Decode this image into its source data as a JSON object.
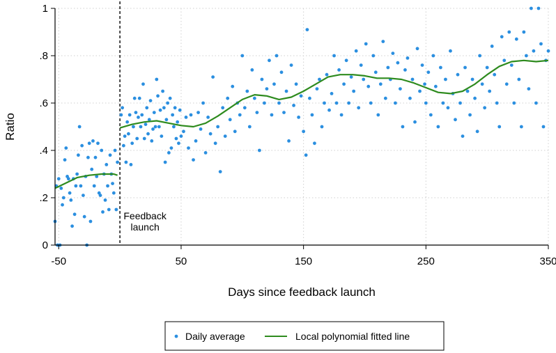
{
  "chart_data": {
    "type": "scatter",
    "title": "",
    "xlabel": "Days since feedback launch",
    "ylabel": "Ratio",
    "xlim": [
      -53,
      350
    ],
    "ylim": [
      0,
      1
    ],
    "x_ticks": [
      -50,
      50,
      150,
      250,
      350
    ],
    "x_tick_labels": [
      "-50",
      "50",
      "150",
      "250",
      "350"
    ],
    "y_ticks": [
      0,
      0.2,
      0.4,
      0.6,
      0.8,
      1
    ],
    "y_tick_labels": [
      "0",
      ".2",
      ".4",
      ".6",
      ".8",
      "1"
    ],
    "grid": true,
    "legend_position": "bottom",
    "colors": {
      "points": "#2b8fe0",
      "line": "#2e8b1e",
      "vline": "#000000",
      "grid": "#cfcfcf"
    },
    "annotation": {
      "line1": "Feedback",
      "line2": "launch",
      "x": 0
    },
    "series": [
      {
        "name": "Daily average",
        "kind": "scatter",
        "points": [
          [
            -53,
            0.1
          ],
          [
            -52,
            0.25
          ],
          [
            -51,
            0
          ],
          [
            -50,
            0.28
          ],
          [
            -49,
            0
          ],
          [
            -48,
            0.24
          ],
          [
            -47,
            0.17
          ],
          [
            -46,
            0.2
          ],
          [
            -45,
            0.36
          ],
          [
            -44,
            0.41
          ],
          [
            -43,
            0.29
          ],
          [
            -42,
            0.28
          ],
          [
            -41,
            0.22
          ],
          [
            -40,
            0.19
          ],
          [
            -39,
            0.08
          ],
          [
            -38,
            0.28
          ],
          [
            -37,
            0.13
          ],
          [
            -36,
            0.25
          ],
          [
            -35,
            0.3
          ],
          [
            -34,
            0.38
          ],
          [
            -33,
            0.5
          ],
          [
            -32,
            0.25
          ],
          [
            -31,
            0.42
          ],
          [
            -30,
            0.21
          ],
          [
            -29,
            0.12
          ],
          [
            -28,
            0.29
          ],
          [
            -27,
            0
          ],
          [
            -26,
            0.37
          ],
          [
            -25,
            0.43
          ],
          [
            -24,
            0.1
          ],
          [
            -23,
            0.32
          ],
          [
            -22,
            0.44
          ],
          [
            -21,
            0.25
          ],
          [
            -20,
            0.37
          ],
          [
            -19,
            0.29
          ],
          [
            -18,
            0.43
          ],
          [
            -17,
            0.22
          ],
          [
            -16,
            0.21
          ],
          [
            -15,
            0.4
          ],
          [
            -14,
            0.14
          ],
          [
            -13,
            0.3
          ],
          [
            -12,
            0.19
          ],
          [
            -11,
            0.34
          ],
          [
            -10,
            0.25
          ],
          [
            -9,
            0.15
          ],
          [
            -8,
            0.38
          ],
          [
            -7,
            0.3
          ],
          [
            -6,
            0.26
          ],
          [
            -5,
            0.22
          ],
          [
            -4,
            0.4
          ],
          [
            -3,
            0.15
          ],
          [
            -2,
            0.35
          ],
          [
            1,
            0.55
          ],
          [
            2,
            0.58
          ],
          [
            3,
            0.42
          ],
          [
            4,
            0.46
          ],
          [
            5,
            0.35
          ],
          [
            6,
            0.52
          ],
          [
            7,
            0.47
          ],
          [
            8,
            0.55
          ],
          [
            9,
            0.34
          ],
          [
            10,
            0.43
          ],
          [
            11,
            0.5
          ],
          [
            12,
            0.62
          ],
          [
            13,
            0.56
          ],
          [
            14,
            0.45
          ],
          [
            15,
            0.54
          ],
          [
            16,
            0.62
          ],
          [
            17,
            0.5
          ],
          [
            18,
            0.55
          ],
          [
            19,
            0.68
          ],
          [
            20,
            0.45
          ],
          [
            21,
            0.51
          ],
          [
            22,
            0.58
          ],
          [
            23,
            0.47
          ],
          [
            24,
            0.53
          ],
          [
            25,
            0.61
          ],
          [
            26,
            0.44
          ],
          [
            27,
            0.49
          ],
          [
            28,
            0.56
          ],
          [
            29,
            0.5
          ],
          [
            30,
            0.7
          ],
          [
            31,
            0.63
          ],
          [
            32,
            0.5
          ],
          [
            33,
            0.57
          ],
          [
            34,
            0.46
          ],
          [
            35,
            0.65
          ],
          [
            36,
            0.58
          ],
          [
            37,
            0.35
          ],
          [
            38,
            0.53
          ],
          [
            39,
            0.6
          ],
          [
            40,
            0.39
          ],
          [
            41,
            0.62
          ],
          [
            42,
            0.41
          ],
          [
            43,
            0.55
          ],
          [
            44,
            0.5
          ],
          [
            45,
            0.58
          ],
          [
            46,
            0.45
          ],
          [
            47,
            0.52
          ],
          [
            48,
            0.43
          ],
          [
            49,
            0.57
          ],
          [
            50,
            0.46
          ],
          [
            52,
            0.48
          ],
          [
            54,
            0.54
          ],
          [
            56,
            0.41
          ],
          [
            58,
            0.55
          ],
          [
            60,
            0.36
          ],
          [
            62,
            0.44
          ],
          [
            64,
            0.56
          ],
          [
            66,
            0.49
          ],
          [
            68,
            0.6
          ],
          [
            70,
            0.39
          ],
          [
            72,
            0.54
          ],
          [
            74,
            0.47
          ],
          [
            76,
            0.71
          ],
          [
            78,
            0.43
          ],
          [
            80,
            0.5
          ],
          [
            82,
            0.31
          ],
          [
            84,
            0.58
          ],
          [
            86,
            0.46
          ],
          [
            88,
            0.62
          ],
          [
            90,
            0.53
          ],
          [
            92,
            0.67
          ],
          [
            94,
            0.48
          ],
          [
            96,
            0.6
          ],
          [
            98,
            0.55
          ],
          [
            100,
            0.8
          ],
          [
            102,
            0.58
          ],
          [
            104,
            0.65
          ],
          [
            106,
            0.5
          ],
          [
            108,
            0.74
          ],
          [
            110,
            0.62
          ],
          [
            112,
            0.56
          ],
          [
            114,
            0.4
          ],
          [
            116,
            0.7
          ],
          [
            118,
            0.6
          ],
          [
            120,
            0.66
          ],
          [
            122,
            0.78
          ],
          [
            124,
            0.55
          ],
          [
            126,
            0.68
          ],
          [
            128,
            0.8
          ],
          [
            130,
            0.6
          ],
          [
            132,
            0.73
          ],
          [
            134,
            0.56
          ],
          [
            136,
            0.65
          ],
          [
            138,
            0.44
          ],
          [
            140,
            0.76
          ],
          [
            142,
            0.59
          ],
          [
            144,
            0.68
          ],
          [
            146,
            0.54
          ],
          [
            148,
            0.63
          ],
          [
            150,
            0.48
          ],
          [
            152,
            0.38
          ],
          [
            153,
            0.91
          ],
          [
            155,
            0.62
          ],
          [
            157,
            0.55
          ],
          [
            159,
            0.43
          ],
          [
            161,
            0.66
          ],
          [
            163,
            0.7
          ],
          [
            165,
            0.5
          ],
          [
            167,
            0.6
          ],
          [
            169,
            0.72
          ],
          [
            171,
            0.57
          ],
          [
            173,
            0.64
          ],
          [
            175,
            0.8
          ],
          [
            177,
            0.6
          ],
          [
            179,
            0.74
          ],
          [
            181,
            0.55
          ],
          [
            183,
            0.68
          ],
          [
            185,
            0.78
          ],
          [
            187,
            0.6
          ],
          [
            189,
            0.71
          ],
          [
            191,
            0.65
          ],
          [
            193,
            0.82
          ],
          [
            195,
            0.58
          ],
          [
            197,
            0.76
          ],
          [
            199,
            0.7
          ],
          [
            201,
            0.85
          ],
          [
            203,
            0.67
          ],
          [
            205,
            0.6
          ],
          [
            207,
            0.8
          ],
          [
            209,
            0.73
          ],
          [
            211,
            0.55
          ],
          [
            213,
            0.68
          ],
          [
            215,
            0.86
          ],
          [
            217,
            0.62
          ],
          [
            219,
            0.75
          ],
          [
            221,
            0.7
          ],
          [
            223,
            0.81
          ],
          [
            225,
            0.6
          ],
          [
            227,
            0.77
          ],
          [
            229,
            0.66
          ],
          [
            231,
            0.5
          ],
          [
            233,
            0.74
          ],
          [
            235,
            0.79
          ],
          [
            237,
            0.62
          ],
          [
            239,
            0.7
          ],
          [
            241,
            0.52
          ],
          [
            243,
            0.83
          ],
          [
            245,
            0.65
          ],
          [
            247,
            0.76
          ],
          [
            249,
            0.68
          ],
          [
            250,
            0.6
          ],
          [
            252,
            0.73
          ],
          [
            254,
            0.55
          ],
          [
            256,
            0.8
          ],
          [
            258,
            0.67
          ],
          [
            260,
            0.5
          ],
          [
            262,
            0.75
          ],
          [
            264,
            0.6
          ],
          [
            266,
            0.7
          ],
          [
            268,
            0.58
          ],
          [
            270,
            0.82
          ],
          [
            272,
            0.64
          ],
          [
            274,
            0.53
          ],
          [
            276,
            0.72
          ],
          [
            278,
            0.6
          ],
          [
            280,
            0.46
          ],
          [
            282,
            0.75
          ],
          [
            284,
            0.65
          ],
          [
            286,
            0.55
          ],
          [
            288,
            0.7
          ],
          [
            290,
            0.62
          ],
          [
            292,
            0.48
          ],
          [
            294,
            0.8
          ],
          [
            296,
            0.68
          ],
          [
            298,
            0.58
          ],
          [
            300,
            0.75
          ],
          [
            302,
            0.65
          ],
          [
            304,
            0.84
          ],
          [
            306,
            0.72
          ],
          [
            308,
            0.6
          ],
          [
            310,
            0.5
          ],
          [
            312,
            0.88
          ],
          [
            314,
            0.78
          ],
          [
            316,
            0.68
          ],
          [
            318,
            0.9
          ],
          [
            320,
            0.76
          ],
          [
            322,
            0.6
          ],
          [
            324,
            0.87
          ],
          [
            326,
            0.7
          ],
          [
            328,
            0.5
          ],
          [
            330,
            0.9
          ],
          [
            332,
            0.8
          ],
          [
            334,
            0.66
          ],
          [
            336,
            1
          ],
          [
            338,
            0.82
          ],
          [
            340,
            0.6
          ],
          [
            342,
            1
          ],
          [
            344,
            0.85
          ],
          [
            346,
            0.5
          ],
          [
            348,
            0.78
          ],
          [
            350,
            0.82
          ]
        ]
      },
      {
        "name": "Local polynomial fitted line",
        "kind": "line",
        "segments": [
          [
            [
              -53,
              0.24
            ],
            [
              -45,
              0.26
            ],
            [
              -35,
              0.285
            ],
            [
              -25,
              0.295
            ],
            [
              -15,
              0.3
            ],
            [
              -5,
              0.3
            ],
            [
              -2,
              0.295
            ]
          ],
          [
            [
              0,
              0.495
            ],
            [
              10,
              0.51
            ],
            [
              20,
              0.52
            ],
            [
              30,
              0.525
            ],
            [
              40,
              0.515
            ],
            [
              50,
              0.505
            ],
            [
              60,
              0.5
            ],
            [
              70,
              0.515
            ],
            [
              80,
              0.545
            ],
            [
              90,
              0.58
            ],
            [
              100,
              0.615
            ],
            [
              110,
              0.635
            ],
            [
              120,
              0.63
            ],
            [
              130,
              0.615
            ],
            [
              140,
              0.625
            ],
            [
              150,
              0.65
            ],
            [
              160,
              0.68
            ],
            [
              170,
              0.71
            ],
            [
              180,
              0.72
            ],
            [
              190,
              0.72
            ],
            [
              200,
              0.715
            ],
            [
              210,
              0.705
            ],
            [
              220,
              0.705
            ],
            [
              230,
              0.7
            ],
            [
              240,
              0.685
            ],
            [
              250,
              0.665
            ],
            [
              260,
              0.645
            ],
            [
              270,
              0.64
            ],
            [
              280,
              0.65
            ],
            [
              290,
              0.68
            ],
            [
              300,
              0.72
            ],
            [
              310,
              0.755
            ],
            [
              320,
              0.775
            ],
            [
              330,
              0.78
            ],
            [
              340,
              0.775
            ],
            [
              350,
              0.78
            ]
          ]
        ]
      }
    ]
  }
}
